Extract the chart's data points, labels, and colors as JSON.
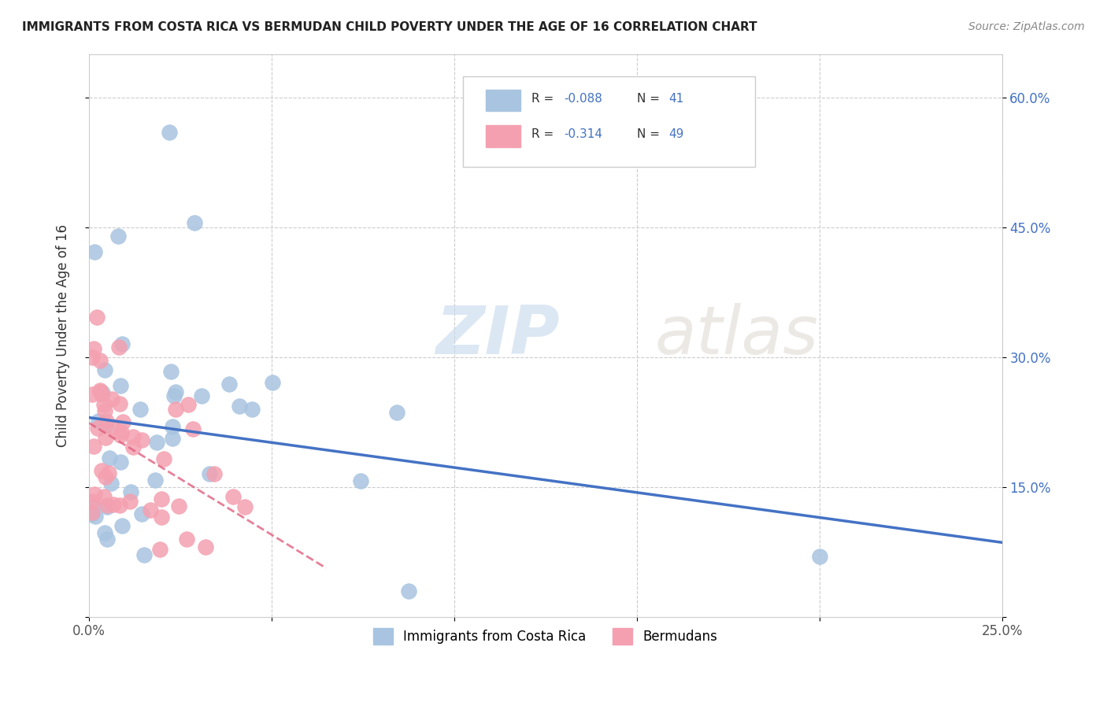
{
  "title": "IMMIGRANTS FROM COSTA RICA VS BERMUDAN CHILD POVERTY UNDER THE AGE OF 16 CORRELATION CHART",
  "source": "Source: ZipAtlas.com",
  "ylabel": "Child Poverty Under the Age of 16",
  "legend_labels": [
    "Immigrants from Costa Rica",
    "Bermudans"
  ],
  "xlim": [
    0,
    0.25
  ],
  "ylim": [
    0,
    0.65
  ],
  "color_blue": "#a8c4e0",
  "color_pink": "#f4a0b0",
  "line_blue": "#4472c4",
  "line_pink": "#e06080",
  "watermark_zip": "ZIP",
  "watermark_atlas": "atlas"
}
